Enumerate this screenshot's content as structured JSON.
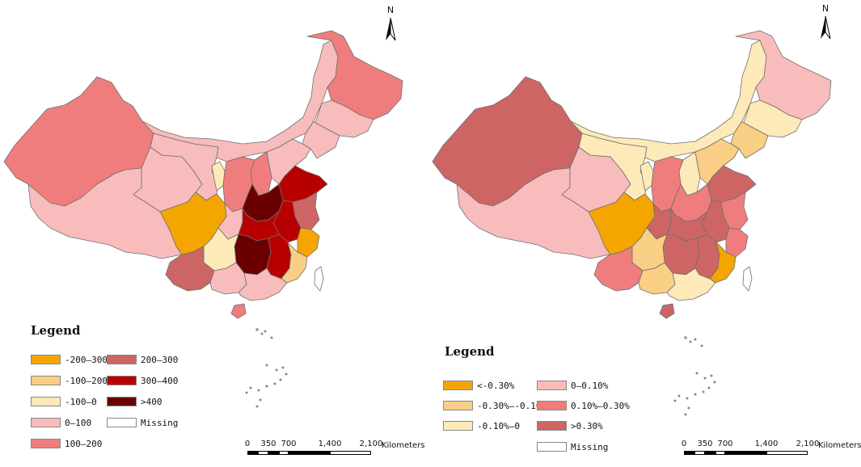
{
  "maps": [
    {
      "id": "left",
      "legend": {
        "title": "Legend",
        "items": [
          {
            "label": "-200—300",
            "color": "#f5a500"
          },
          {
            "label": "-100—200",
            "color": "#f9cf85"
          },
          {
            "label": "-100—0",
            "color": "#fdeab8"
          },
          {
            "label": "0—100",
            "color": "#f8bcbc"
          },
          {
            "label": "100—200",
            "color": "#f07d7d"
          },
          {
            "label": "200—300",
            "color": "#cd6565"
          },
          {
            "label": "300—400",
            "color": "#b80000"
          },
          {
            "label": ">400",
            "color": "#6b0000"
          },
          {
            "label": "Missing",
            "color": "#ffffff"
          }
        ]
      },
      "province_fills": {
        "xinjiang": "#f07d7d",
        "tibet": "#f8bcbc",
        "qinghai": "#f8bcbc",
        "gansu": "#f8bcbc",
        "inner_mongolia": "#f8bcbc",
        "heilongjiang": "#f07d7d",
        "jilin": "#f8bcbc",
        "liaoning": "#f8bcbc",
        "ningxia": "#fdeab8",
        "shaanxi": "#f07d7d",
        "shanxi": "#f07d7d",
        "hebei": "#f8bcbc",
        "shandong": "#b80000",
        "henan": "#6b0000",
        "jiangsu": "#cd6565",
        "anhui": "#b80000",
        "sichuan": "#f5a500",
        "chongqing": "#f8bcbc",
        "hubei": "#b80000",
        "hunan": "#6b0000",
        "jiangxi": "#b80000",
        "zhejiang": "#f5a500",
        "fujian": "#f9cf85",
        "yunnan": "#cd6565",
        "guizhou": "#fdeab8",
        "guangxi": "#f8bcbc",
        "guangdong": "#f8bcbc",
        "hainan": "#f07d7d",
        "taiwan": "#ffffff"
      }
    },
    {
      "id": "right",
      "legend": {
        "title": "Legend",
        "items": [
          {
            "label": "<-0.30%",
            "color": "#f5a500"
          },
          {
            "label": "-0.30%—-0.10%",
            "color": "#f9cf85"
          },
          {
            "label": "-0.10%—0",
            "color": "#fdeab8"
          },
          {
            "label": "0—0.10%",
            "color": "#f8bcbc"
          },
          {
            "label": "0.10%—0.30%",
            "color": "#f07d7d"
          },
          {
            "label": ">0.30%",
            "color": "#cd6565"
          },
          {
            "label": "Missing",
            "color": "#ffffff"
          }
        ]
      },
      "province_fills": {
        "xinjiang": "#cd6565",
        "tibet": "#f8bcbc",
        "qinghai": "#f8bcbc",
        "gansu": "#fdeab8",
        "inner_mongolia": "#fdeab8",
        "heilongjiang": "#f8bcbc",
        "jilin": "#fdeab8",
        "liaoning": "#f9cf85",
        "ningxia": "#fdeab8",
        "shaanxi": "#f07d7d",
        "shanxi": "#fdeab8",
        "hebei": "#f9cf85",
        "shandong": "#cd6565",
        "henan": "#f07d7d",
        "jiangsu": "#f07d7d",
        "anhui": "#cd6565",
        "sichuan": "#f5a500",
        "chongqing": "#cd6565",
        "hubei": "#cd6565",
        "hunan": "#cd6565",
        "jiangxi": "#cd6565",
        "zhejiang": "#f07d7d",
        "fujian": "#f5a500",
        "yunnan": "#f07d7d",
        "guizhou": "#f9cf85",
        "guangxi": "#f9cf85",
        "guangdong": "#fdeab8",
        "hainan": "#cd6565",
        "taiwan": "#ffffff"
      }
    }
  ],
  "north_arrow": {
    "label": "N"
  },
  "scale_bar": {
    "ticks": [
      "0",
      "350",
      "700",
      "1,400",
      "2,100"
    ],
    "unit": "Kilometers"
  }
}
